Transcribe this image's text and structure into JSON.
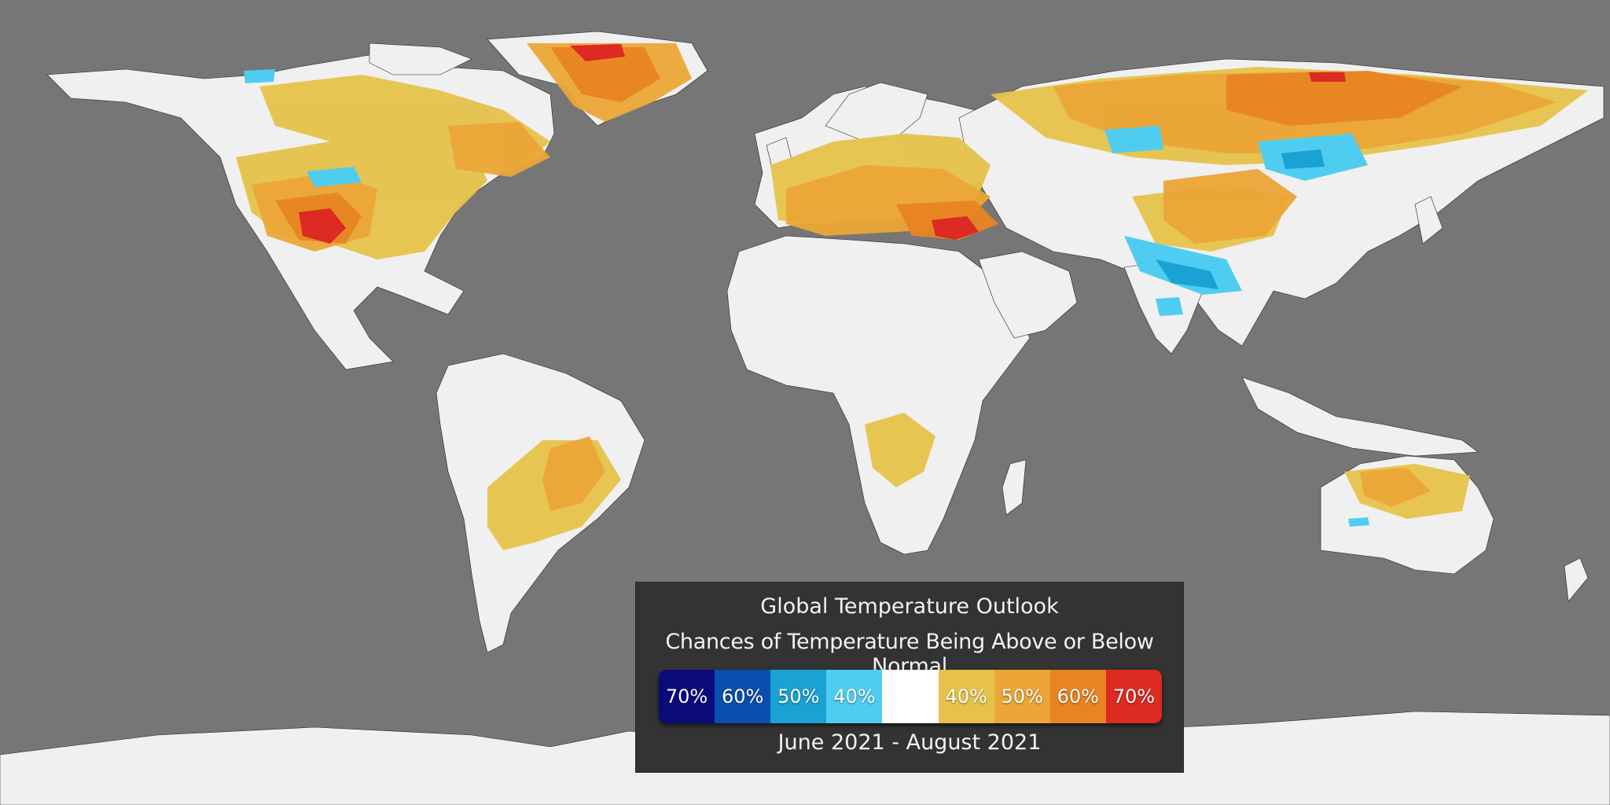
{
  "legend": {
    "title": "Global Temperature Outlook",
    "subtitle": "Chances of Temperature Being Above or Below Normal",
    "period": "June 2021 - August 2021",
    "scale": [
      {
        "label": "70%",
        "color": "#0a0a7a",
        "category": "below"
      },
      {
        "label": "60%",
        "color": "#0a4fb0",
        "category": "below"
      },
      {
        "label": "50%",
        "color": "#1aa2d4",
        "category": "below"
      },
      {
        "label": "40%",
        "color": "#4fcdf0",
        "category": "below"
      },
      {
        "label": "",
        "color": "#ffffff",
        "category": "normal"
      },
      {
        "label": "40%",
        "color": "#e6c24a",
        "category": "above"
      },
      {
        "label": "50%",
        "color": "#eba637",
        "category": "above"
      },
      {
        "label": "60%",
        "color": "#e88422",
        "category": "above"
      },
      {
        "label": "70%",
        "color": "#dd2a22",
        "category": "above"
      }
    ]
  },
  "map": {
    "ocean_color": "#767676",
    "land_color": "#f0f0f0",
    "projection": "equirectangular"
  }
}
